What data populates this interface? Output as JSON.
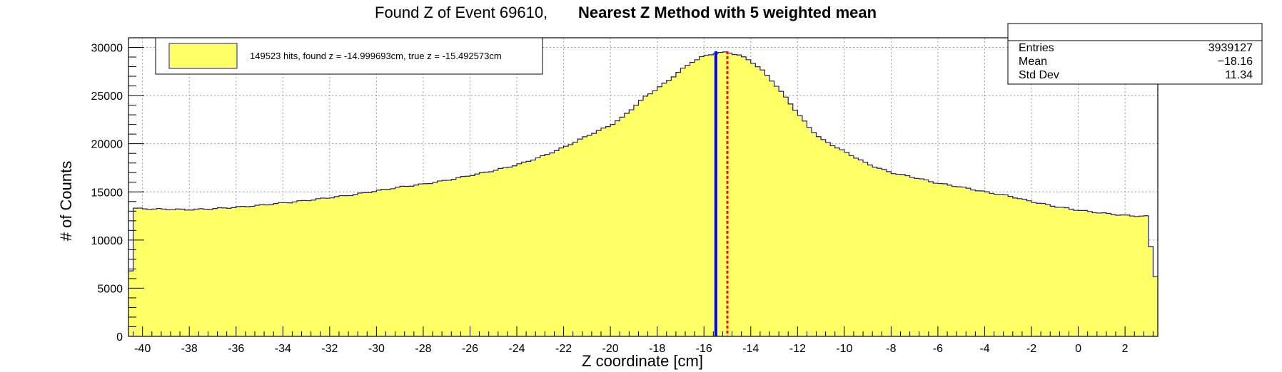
{
  "colors": {
    "fill": "#ffff66",
    "outline": "#1a1a8c",
    "found_line": "#0000ff",
    "true_line": "#ff0000"
  },
  "chart_data": {
    "type": "bar",
    "title_part1": "Found Z of Event 69610,",
    "title_part2": "Nearest Z Method with 5 weighted mean",
    "xlabel": "Z coordinate [cm]",
    "ylabel": "# of Counts",
    "xlim": [
      -40.6,
      3.4
    ],
    "ylim": [
      0,
      31000
    ],
    "grid": true,
    "xticks": [
      -40,
      -38,
      -36,
      -34,
      -32,
      -30,
      -28,
      -26,
      -24,
      -22,
      -20,
      -18,
      -16,
      -14,
      -12,
      -10,
      -8,
      -6,
      -4,
      -2,
      0,
      2
    ],
    "yticks": [
      0,
      5000,
      10000,
      15000,
      20000,
      25000,
      30000
    ],
    "bin_width": 0.2,
    "bins": [
      [
        -40.6,
        6800
      ],
      [
        -40.4,
        13300
      ],
      [
        -40.0,
        13250
      ],
      [
        -39.0,
        13200
      ],
      [
        -38.0,
        13150
      ],
      [
        -37.0,
        13250
      ],
      [
        -36.0,
        13400
      ],
      [
        -35.0,
        13600
      ],
      [
        -34.0,
        13850
      ],
      [
        -33.0,
        14100
      ],
      [
        -32.0,
        14400
      ],
      [
        -31.0,
        14700
      ],
      [
        -30.0,
        15100
      ],
      [
        -29.0,
        15500
      ],
      [
        -28.0,
        15800
      ],
      [
        -27.0,
        16200
      ],
      [
        -26.0,
        16700
      ],
      [
        -25.0,
        17200
      ],
      [
        -24.0,
        17800
      ],
      [
        -23.0,
        18600
      ],
      [
        -22.0,
        19600
      ],
      [
        -21.0,
        20800
      ],
      [
        -20.0,
        21900
      ],
      [
        -19.5,
        22700
      ],
      [
        -19.0,
        23800
      ],
      [
        -18.5,
        24900
      ],
      [
        -18.0,
        25700
      ],
      [
        -17.5,
        26600
      ],
      [
        -17.0,
        27600
      ],
      [
        -16.5,
        28500
      ],
      [
        -16.0,
        29100
      ],
      [
        -15.5,
        29400
      ],
      [
        -15.0,
        29500
      ],
      [
        -14.5,
        29200
      ],
      [
        -14.0,
        28600
      ],
      [
        -13.5,
        27600
      ],
      [
        -13.0,
        26300
      ],
      [
        -12.5,
        24800
      ],
      [
        -12.0,
        23200
      ],
      [
        -11.5,
        21700
      ],
      [
        -11.0,
        20500
      ],
      [
        -10.0,
        19200
      ],
      [
        -9.0,
        17900
      ],
      [
        -8.0,
        17000
      ],
      [
        -7.0,
        16500
      ],
      [
        -6.0,
        15900
      ],
      [
        -5.0,
        15500
      ],
      [
        -4.0,
        15000
      ],
      [
        -3.0,
        14600
      ],
      [
        -2.0,
        14000
      ],
      [
        -1.0,
        13500
      ],
      [
        0.0,
        13100
      ],
      [
        1.0,
        12800
      ],
      [
        2.0,
        12550
      ],
      [
        3.0,
        12450
      ],
      [
        3.2,
        6200
      ],
      [
        3.4,
        6200
      ]
    ],
    "found_z": -14.999693,
    "true_z": -15.492573,
    "legend": {
      "label": "149523 hits, found z = -14.999693cm, true z = -15.492573cm",
      "placement": "top-left"
    },
    "stats": {
      "placement": "top-right",
      "rows": [
        {
          "label": "Entries",
          "value": "3939127"
        },
        {
          "label": "Mean",
          "value": "−18.16"
        },
        {
          "label": "Std Dev",
          "value": "11.34"
        }
      ]
    }
  }
}
